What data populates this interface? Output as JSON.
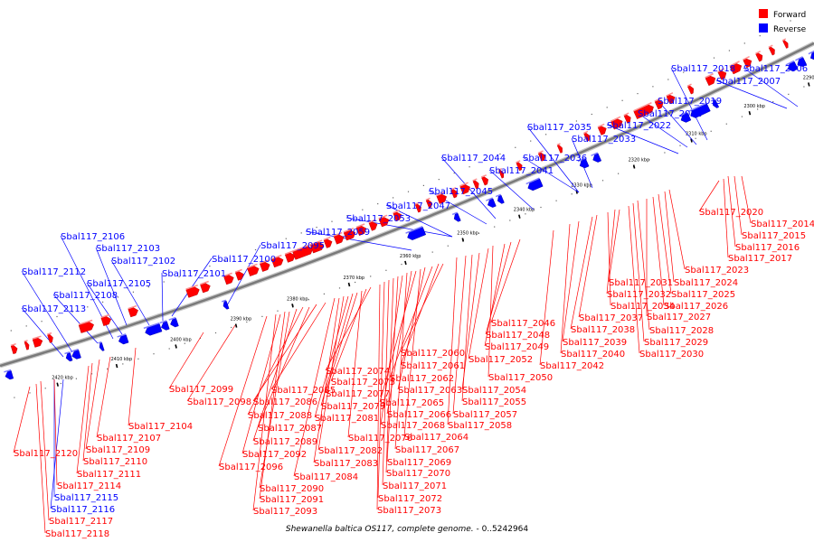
{
  "legend": [
    {
      "label": "Forward",
      "color": "#ff0000"
    },
    {
      "label": "Reverse",
      "color": "#0000ff"
    }
  ],
  "caption_italic": "Shewanella baltica OS117, complete genome.",
  "caption_range": " - 0..5242964",
  "ticks": [
    "2290 kbp",
    "2300 kbp",
    "2310 kbp",
    "2320 kbp",
    "2330 kbp",
    "2340 kbp",
    "2350 kbp",
    "2360 kbp",
    "2370 kbp",
    "2380 kbp",
    "2390 kbp",
    "2400 kbp",
    "2410 kbp",
    "2420 kbp"
  ],
  "reverse_genes": [
    "Sbal117_2006",
    "Sbal117_2007",
    "Sbal117_2018",
    "Sbal117_2019",
    "Sbal117_2021",
    "Sbal117_2022",
    "Sbal117_2033",
    "Sbal117_2035",
    "Sbal117_2036",
    "Sbal117_2041",
    "Sbal117_2044",
    "Sbal117_2045",
    "Sbal117_2047",
    "Sbal117_2053",
    "Sbal117_2059",
    "Sbal117_2095",
    "Sbal117_2100",
    "Sbal117_2101",
    "Sbal117_2102",
    "Sbal117_2103",
    "Sbal117_2105",
    "Sbal117_2106",
    "Sbal117_2108",
    "Sbal117_2112",
    "Sbal117_2113",
    "Sbal117_2115",
    "Sbal117_2116"
  ],
  "forward_genes": [
    "Sbal117_2014",
    "Sbal117_2015",
    "Sbal117_2016",
    "Sbal117_2017",
    "Sbal117_2020",
    "Sbal117_2023",
    "Sbal117_2024",
    "Sbal117_2025",
    "Sbal117_2026",
    "Sbal117_2027",
    "Sbal117_2028",
    "Sbal117_2029",
    "Sbal117_2030",
    "Sbal117_2031",
    "Sbal117_2032",
    "Sbal117_2034",
    "Sbal117_2037",
    "Sbal117_2038",
    "Sbal117_2039",
    "Sbal117_2040",
    "Sbal117_2042",
    "Sbal117_2046",
    "Sbal117_2048",
    "Sbal117_2049",
    "Sbal117_2050",
    "Sbal117_2052",
    "Sbal117_2054",
    "Sbal117_2055",
    "Sbal117_2057",
    "Sbal117_2058",
    "Sbal117_2060",
    "Sbal117_2061",
    "Sbal117_2062",
    "Sbal117_2063",
    "Sbal117_2064",
    "Sbal117_2065",
    "Sbal117_2066",
    "Sbal117_2067",
    "Sbal117_2068",
    "Sbal117_2069",
    "Sbal117_2070",
    "Sbal117_2071",
    "Sbal117_2072",
    "Sbal117_2073",
    "Sbal117_2074",
    "Sbal117_2075",
    "Sbal117_2076",
    "Sbal117_2077",
    "Sbal117_2079",
    "Sbal117_2081",
    "Sbal117_2082",
    "Sbal117_2083",
    "Sbal117_2084",
    "Sbal117_2085",
    "Sbal117_2086",
    "Sbal117_2087",
    "Sbal117_2088",
    "Sbal117_2089",
    "Sbal117_2090",
    "Sbal117_2091",
    "Sbal117_2092",
    "Sbal117_2093",
    "Sbal117_2096",
    "Sbal117_2098",
    "Sbal117_2099",
    "Sbal117_2104",
    "Sbal117_2107",
    "Sbal117_2109",
    "Sbal117_2110",
    "Sbal117_2111",
    "Sbal117_2114",
    "Sbal117_2117",
    "Sbal117_2118",
    "Sbal117_2120"
  ]
}
